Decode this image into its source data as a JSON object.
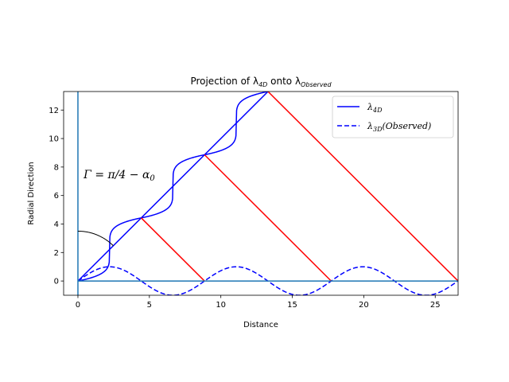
{
  "chart_data": {
    "type": "line",
    "title_prefix": "Projection of λ",
    "title_sub1": "4D",
    "title_mid": " onto λ",
    "title_sub2": "Observed",
    "xlabel": "Distance",
    "ylabel": "Radial Direction",
    "xlim": [
      -1,
      26.6
    ],
    "ylim": [
      -1,
      13.3
    ],
    "x_ticks": [
      0,
      5,
      10,
      15,
      20,
      25
    ],
    "y_ticks": [
      0,
      2,
      4,
      6,
      8,
      10,
      12
    ],
    "grid": false,
    "legend_position": "top-right",
    "legend": [
      {
        "label": "λ",
        "sub": "4D",
        "suffix": "",
        "color": "#0000ff",
        "style": "solid"
      },
      {
        "label": "λ",
        "sub": "3D",
        "suffix": "(Observed)",
        "color": "#0000ff",
        "style": "dashed"
      }
    ],
    "annotation": {
      "text": "Γ = π/4 − α",
      "sub": "0",
      "x": 0.4,
      "y": 7.2
    },
    "series": [
      {
        "name": "λ4D",
        "color": "#0000ff",
        "style": "solid",
        "kind": "staircase",
        "steps": [
          {
            "x_start": 0.0,
            "x_end": 4.43,
            "y_start": 0.0,
            "y_end": 4.43
          },
          {
            "x_start": 4.43,
            "x_end": 8.86,
            "y_start": 4.43,
            "y_end": 8.86
          },
          {
            "x_start": 8.86,
            "x_end": 13.3,
            "y_start": 8.86,
            "y_end": 13.3
          }
        ]
      },
      {
        "name": "λ3D(Observed)",
        "color": "#0000ff",
        "style": "dashed",
        "kind": "sine",
        "amplitude": 1.0,
        "x_range": [
          0,
          26.6
        ],
        "wavelength": 8.86
      },
      {
        "name": "diagonal",
        "color": "#0000ff",
        "style": "solid",
        "kind": "segments",
        "points": [
          [
            0,
            0
          ],
          [
            13.3,
            13.3
          ]
        ]
      },
      {
        "name": "red-lines",
        "color": "#ff0000",
        "style": "solid",
        "kind": "segment-list",
        "segments": [
          [
            [
              4.43,
              4.43
            ],
            [
              8.86,
              0
            ]
          ],
          [
            [
              8.86,
              8.86
            ],
            [
              17.72,
              0
            ]
          ],
          [
            [
              13.3,
              13.3
            ],
            [
              26.6,
              0
            ]
          ]
        ]
      },
      {
        "name": "axis-lines",
        "color": "#1f77b4",
        "style": "solid",
        "kind": "segment-list",
        "segments": [
          [
            [
              0,
              0
            ],
            [
              26.6,
              0
            ]
          ],
          [
            [
              0,
              -1
            ],
            [
              0,
              13.3
            ]
          ]
        ]
      },
      {
        "name": "angle-arc",
        "color": "#000000",
        "style": "solid",
        "kind": "arc",
        "center": [
          0,
          0
        ],
        "radius": 3.5,
        "angle_from_deg": 45,
        "angle_to_deg": 90
      }
    ]
  }
}
